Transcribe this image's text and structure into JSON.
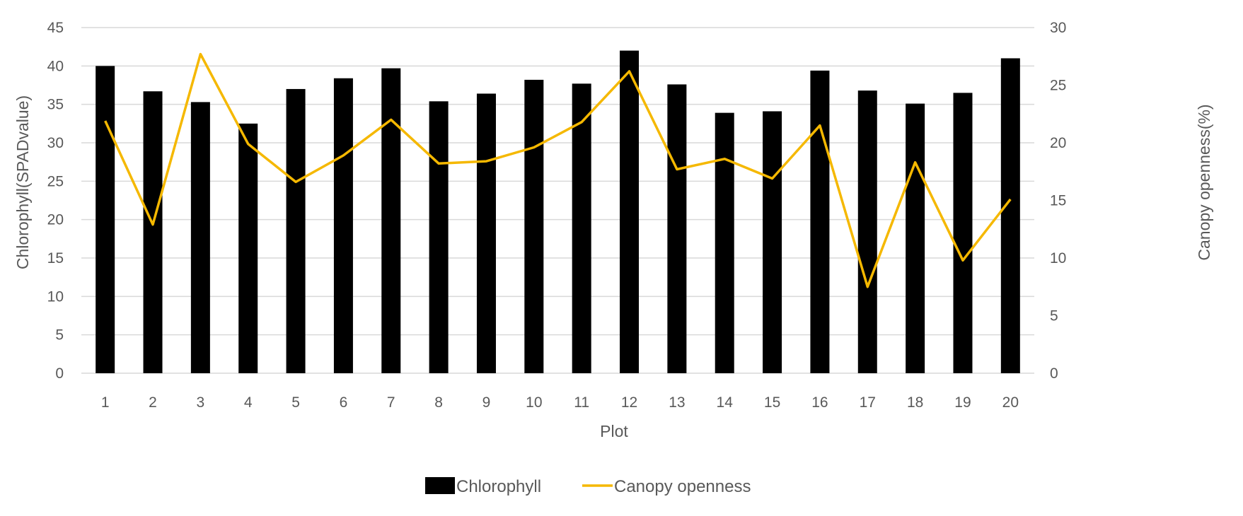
{
  "chart_data": {
    "type": "bar",
    "title": "",
    "xlabel": "Plot",
    "ylabel": "Chlorophyll(SPADvalue)",
    "y2label": "Canopy openness(%)",
    "categories": [
      "1",
      "2",
      "3",
      "4",
      "5",
      "6",
      "7",
      "8",
      "9",
      "10",
      "11",
      "12",
      "13",
      "14",
      "15",
      "16",
      "17",
      "18",
      "19",
      "20"
    ],
    "ylim": [
      0,
      45
    ],
    "yticks": [
      0,
      5,
      10,
      15,
      20,
      25,
      30,
      35,
      40,
      45
    ],
    "y2lim": [
      0,
      30
    ],
    "y2ticks": [
      0,
      5,
      10,
      15,
      20,
      25,
      30
    ],
    "grid": true,
    "legend_position": "bottom",
    "series": [
      {
        "name": "Chlorophyll",
        "type": "bar",
        "axis": "left",
        "color": "#000000",
        "values": [
          40.0,
          36.7,
          35.3,
          32.5,
          37.0,
          38.4,
          39.7,
          35.4,
          36.4,
          38.2,
          37.7,
          42.0,
          37.6,
          33.9,
          34.1,
          39.4,
          36.8,
          35.1,
          36.5,
          41.0
        ]
      },
      {
        "name": "Canopy openness",
        "type": "line",
        "axis": "right",
        "color": "#f5b800",
        "values": [
          21.9,
          12.9,
          27.7,
          19.9,
          16.6,
          18.9,
          22.0,
          18.2,
          18.4,
          19.6,
          21.8,
          26.2,
          17.7,
          18.6,
          16.9,
          21.5,
          7.5,
          18.3,
          9.8,
          15.1
        ]
      }
    ]
  }
}
